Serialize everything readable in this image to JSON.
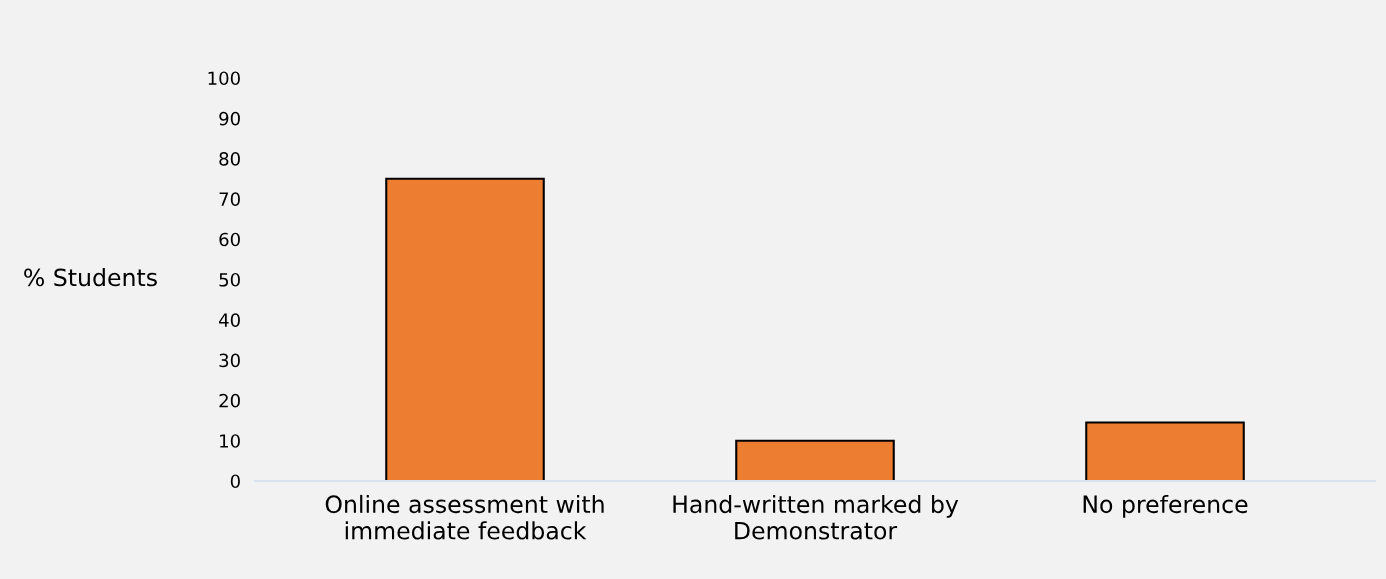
{
  "chart_data": {
    "type": "bar",
    "ylabel": "% Students",
    "categories": [
      "Online assessment with\nimmediate feedback",
      "Hand-written marked by\nDemonstrator",
      "No preference"
    ],
    "values": [
      75,
      10,
      14.5
    ],
    "color": "#ed7d31",
    "ylim": [
      0,
      100
    ],
    "yticks": [
      0,
      10,
      20,
      30,
      40,
      50,
      60,
      70,
      80,
      90,
      100
    ],
    "grid": false
  }
}
